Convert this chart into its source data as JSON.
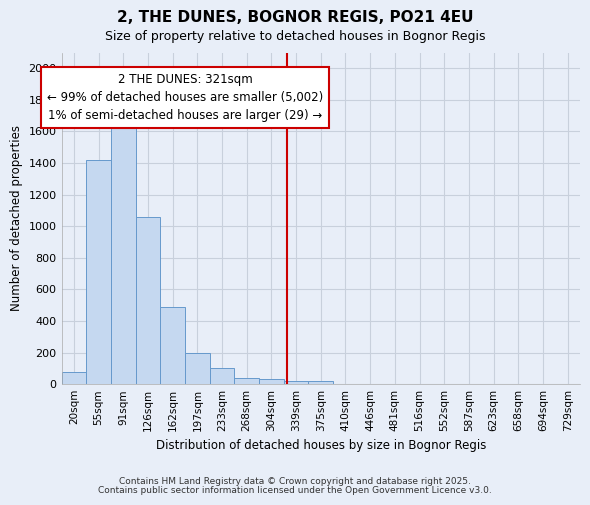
{
  "title": "2, THE DUNES, BOGNOR REGIS, PO21 4EU",
  "subtitle": "Size of property relative to detached houses in Bognor Regis",
  "xlabel": "Distribution of detached houses by size in Bognor Regis",
  "ylabel": "Number of detached properties",
  "categories": [
    "20sqm",
    "55sqm",
    "91sqm",
    "126sqm",
    "162sqm",
    "197sqm",
    "233sqm",
    "268sqm",
    "304sqm",
    "339sqm",
    "375sqm",
    "410sqm",
    "446sqm",
    "481sqm",
    "516sqm",
    "552sqm",
    "587sqm",
    "623sqm",
    "658sqm",
    "694sqm",
    "729sqm"
  ],
  "values": [
    80,
    1420,
    1620,
    1060,
    490,
    200,
    105,
    40,
    30,
    20,
    20,
    0,
    0,
    0,
    0,
    0,
    0,
    0,
    0,
    0,
    0
  ],
  "bar_color": "#c5d8f0",
  "bar_edge_color": "#6699cc",
  "background_color": "#e8eef8",
  "grid_color": "#c8d0dc",
  "red_line_x": 8.62,
  "annotation_line1": "2 THE DUNES: 321sqm",
  "annotation_line2": "← 99% of detached houses are smaller (5,002)",
  "annotation_line3": "1% of semi-detached houses are larger (29) →",
  "annotation_box_color": "white",
  "annotation_box_edge_color": "#cc0000",
  "ylim": [
    0,
    2100
  ],
  "yticks": [
    0,
    200,
    400,
    600,
    800,
    1000,
    1200,
    1400,
    1600,
    1800,
    2000
  ],
  "footnote1": "Contains HM Land Registry data © Crown copyright and database right 2025.",
  "footnote2": "Contains public sector information licensed under the Open Government Licence v3.0."
}
